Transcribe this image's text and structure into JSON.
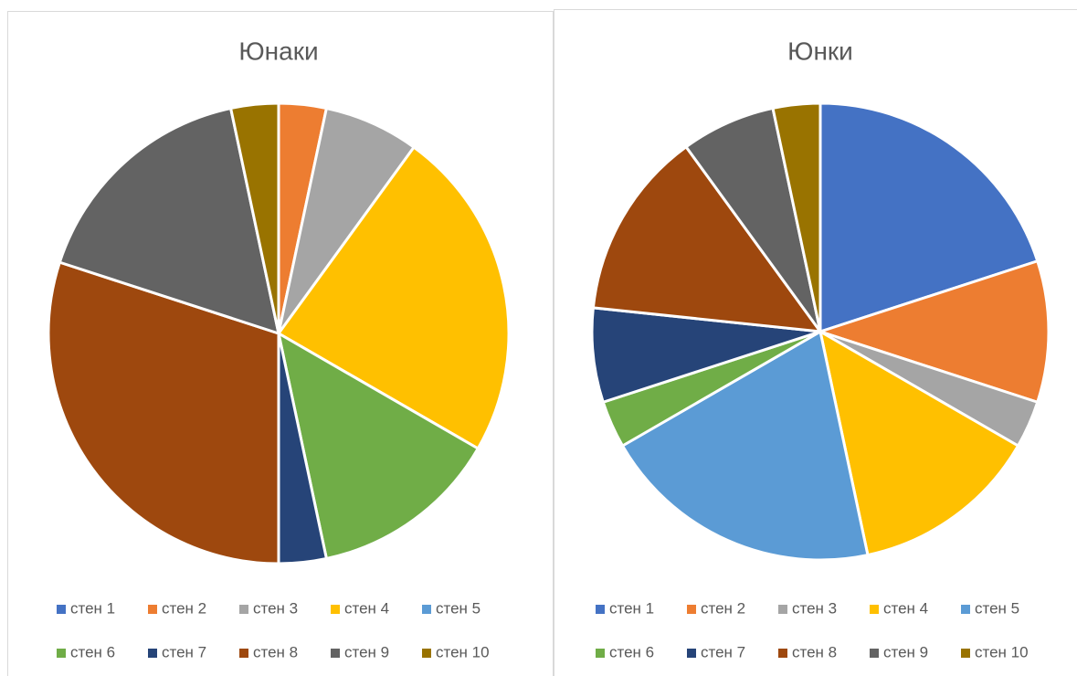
{
  "chart_data": [
    {
      "type": "pie",
      "title": "Юнаки",
      "categories": [
        "стен 1",
        "стен 2",
        "стен 3",
        "стен 4",
        "стен 5",
        "стен 6",
        "стен 7",
        "стен 8",
        "стен 9",
        "стен 10"
      ],
      "values": [
        0,
        1,
        2,
        7,
        0,
        4,
        1,
        9,
        5,
        1
      ],
      "colors": [
        "#4472C4",
        "#ED7D31",
        "#A5A5A5",
        "#FFC000",
        "#5B9BD5",
        "#70AD47",
        "#264478",
        "#9E480E",
        "#636363",
        "#997300"
      ],
      "legend": "bottom"
    },
    {
      "type": "pie",
      "title": "Юнки",
      "categories": [
        "стен 1",
        "стен 2",
        "стен 3",
        "стен 4",
        "стен 5",
        "стен 6",
        "стен 7",
        "стен 8",
        "стен 9",
        "стен 10"
      ],
      "values": [
        6,
        3,
        1,
        4,
        6,
        1,
        2,
        4,
        2,
        1
      ],
      "colors": [
        "#4472C4",
        "#ED7D31",
        "#A5A5A5",
        "#FFC000",
        "#5B9BD5",
        "#70AD47",
        "#264478",
        "#9E480E",
        "#636363",
        "#997300"
      ],
      "legend": "bottom"
    }
  ]
}
